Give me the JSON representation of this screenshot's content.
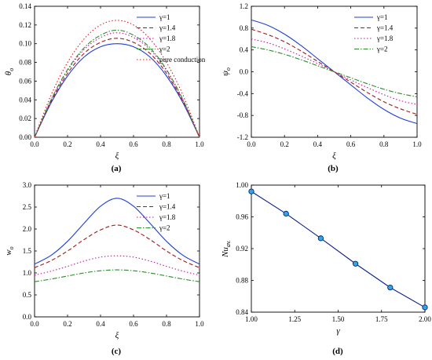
{
  "chart_data": [
    {
      "panel": "(a)",
      "type": "line",
      "xlabel": "ξ",
      "ylabel": "θo",
      "xlim": [
        0,
        1
      ],
      "ylim": [
        0,
        0.14
      ],
      "xticks": [
        0.0,
        0.2,
        0.4,
        0.6,
        0.8,
        1.0
      ],
      "yticks": [
        0.0,
        0.02,
        0.04,
        0.06,
        0.08,
        0.1,
        0.12,
        0.14
      ],
      "xtick_decimals": 1,
      "ytick_decimals": 2,
      "grid": false,
      "legend": "top-right",
      "x": [
        0.0,
        0.1,
        0.2,
        0.3,
        0.4,
        0.5,
        0.6,
        0.7,
        0.8,
        0.9,
        1.0
      ],
      "series": [
        {
          "name": "γ=1",
          "color": "#1f3fd6",
          "dash": "solid",
          "values": [
            0.0,
            0.0367,
            0.0655,
            0.0857,
            0.0967,
            0.1,
            0.0967,
            0.0857,
            0.0655,
            0.0367,
            0.0
          ]
        },
        {
          "name": "γ=1.4",
          "color": "#a01818",
          "dash": "dashed",
          "values": [
            0.0,
            0.0382,
            0.0683,
            0.0896,
            0.1014,
            0.1058,
            0.1014,
            0.0896,
            0.0683,
            0.0382,
            0.0
          ]
        },
        {
          "name": "γ=1.8",
          "color": "#c0189c",
          "dash": "dotted",
          "values": [
            0.0,
            0.0396,
            0.0712,
            0.0937,
            0.1066,
            0.1118,
            0.1066,
            0.0937,
            0.0712,
            0.0396,
            0.0
          ]
        },
        {
          "name": "γ=2",
          "color": "#2e8b2e",
          "dash": "dashdot",
          "values": [
            0.0,
            0.0401,
            0.0723,
            0.0955,
            0.1091,
            0.1145,
            0.1091,
            0.0955,
            0.0723,
            0.0401,
            0.0
          ]
        },
        {
          "name": "pure conduction",
          "color": "#e01c1c",
          "dash": "dotted",
          "values": [
            0.0,
            0.045,
            0.08,
            0.105,
            0.12,
            0.125,
            0.12,
            0.105,
            0.08,
            0.045,
            0.0
          ]
        }
      ],
      "markers": false
    },
    {
      "panel": "(b)",
      "type": "line",
      "xlabel": "ξ",
      "ylabel": "ψo",
      "xlim": [
        0,
        1
      ],
      "ylim": [
        -1.2,
        1.2
      ],
      "xticks": [
        0.0,
        0.2,
        0.4,
        0.6,
        0.8,
        1.0
      ],
      "yticks": [
        -1.2,
        -0.8,
        -0.4,
        0.0,
        0.4,
        0.8,
        1.2
      ],
      "xtick_decimals": 1,
      "ytick_decimals": 1,
      "grid": false,
      "legend": "top-right",
      "x": [
        0.0,
        0.1,
        0.2,
        0.3,
        0.4,
        0.5,
        0.6,
        0.7,
        0.8,
        0.9,
        1.0
      ],
      "series": [
        {
          "name": "γ=1",
          "color": "#1f3fd6",
          "dash": "solid",
          "values": [
            0.95,
            0.85,
            0.69,
            0.48,
            0.24,
            0.0,
            -0.24,
            -0.48,
            -0.69,
            -0.85,
            -0.95
          ]
        },
        {
          "name": "γ=1.4",
          "color": "#a01818",
          "dash": "dashed",
          "values": [
            0.78,
            0.68,
            0.55,
            0.38,
            0.19,
            0.0,
            -0.19,
            -0.38,
            -0.55,
            -0.68,
            -0.78
          ]
        },
        {
          "name": "γ=1.8",
          "color": "#c0189c",
          "dash": "dotted",
          "values": [
            0.6,
            0.53,
            0.42,
            0.29,
            0.15,
            0.0,
            -0.15,
            -0.29,
            -0.42,
            -0.53,
            -0.6
          ]
        },
        {
          "name": "γ=2",
          "color": "#2e8b2e",
          "dash": "dashdot",
          "values": [
            0.46,
            0.4,
            0.32,
            0.22,
            0.11,
            0.0,
            -0.11,
            -0.22,
            -0.32,
            -0.4,
            -0.46
          ]
        }
      ],
      "markers": false
    },
    {
      "panel": "(c)",
      "type": "line",
      "xlabel": "ξ",
      "ylabel": "wo",
      "xlim": [
        0,
        1
      ],
      "ylim": [
        0.0,
        3.0
      ],
      "xticks": [
        0.0,
        0.2,
        0.4,
        0.6,
        0.8,
        1.0
      ],
      "yticks": [
        0.0,
        0.5,
        1.0,
        1.5,
        2.0,
        2.5,
        3.0
      ],
      "xtick_decimals": 1,
      "ytick_decimals": 1,
      "grid": false,
      "legend": "top-right",
      "x": [
        0.0,
        0.1,
        0.2,
        0.3,
        0.4,
        0.5,
        0.6,
        0.7,
        0.8,
        0.9,
        1.0
      ],
      "series": [
        {
          "name": "γ=1",
          "color": "#1f3fd6",
          "dash": "solid",
          "values": [
            1.2,
            1.4,
            1.72,
            2.13,
            2.52,
            2.7,
            2.52,
            2.13,
            1.72,
            1.4,
            1.2
          ]
        },
        {
          "name": "γ=1.4",
          "color": "#a01818",
          "dash": "dashed",
          "values": [
            1.12,
            1.28,
            1.5,
            1.76,
            1.98,
            2.09,
            1.98,
            1.76,
            1.5,
            1.28,
            1.12
          ]
        },
        {
          "name": "γ=1.8",
          "color": "#c0189c",
          "dash": "dotted",
          "values": [
            0.95,
            1.04,
            1.15,
            1.27,
            1.36,
            1.39,
            1.36,
            1.27,
            1.15,
            1.04,
            0.95
          ]
        },
        {
          "name": "γ=2",
          "color": "#2e8b2e",
          "dash": "dashdot",
          "values": [
            0.8,
            0.86,
            0.93,
            1.0,
            1.05,
            1.07,
            1.05,
            1.0,
            0.93,
            0.86,
            0.8
          ]
        }
      ],
      "markers": false
    },
    {
      "panel": "(d)",
      "type": "line",
      "xlabel": "γ",
      "ylabel": "Nuav.",
      "xlim": [
        1.0,
        2.0
      ],
      "ylim": [
        0.84,
        1.0
      ],
      "xticks": [
        1.0,
        1.25,
        1.5,
        1.75,
        2.0
      ],
      "yticks": [
        0.84,
        0.88,
        0.92,
        0.96,
        1.0
      ],
      "xtick_decimals": 2,
      "ytick_decimals": 2,
      "grid": false,
      "legend": "none",
      "x": [
        1.0,
        1.2,
        1.4,
        1.6,
        1.8,
        2.0
      ],
      "series": [
        {
          "name": "",
          "color": "#0b1f8f",
          "dash": "solid",
          "values": [
            0.992,
            0.964,
            0.933,
            0.901,
            0.871,
            0.846
          ]
        }
      ],
      "markers": true,
      "marker_color": "#2fa8e0"
    }
  ]
}
